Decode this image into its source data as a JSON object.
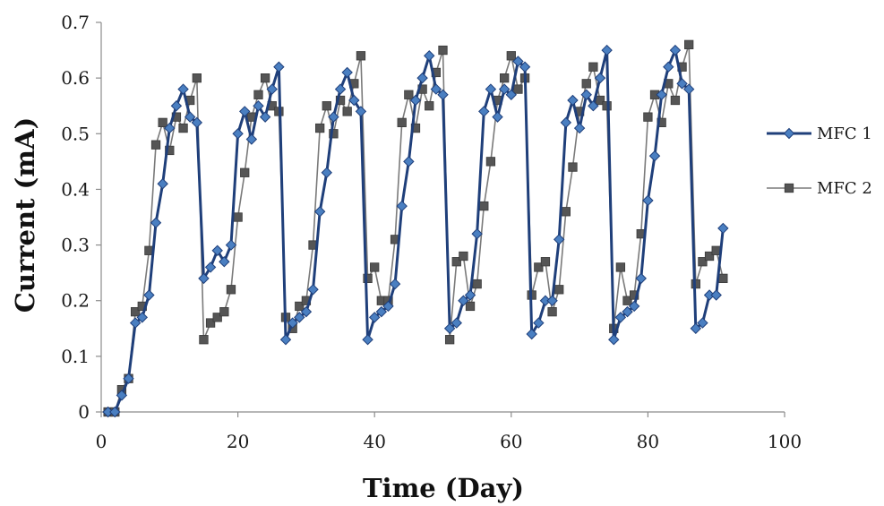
{
  "chart_data": {
    "type": "line",
    "title": "",
    "xlabel": "Time (Day)",
    "ylabel": "Current (mA)",
    "xlim": [
      0,
      100
    ],
    "ylim": [
      0,
      0.7
    ],
    "xticks": [
      0,
      20,
      40,
      60,
      80,
      100
    ],
    "xtick_labels": [
      "0",
      "20",
      "40",
      "60",
      "80",
      "100"
    ],
    "yticks": [
      0,
      0.1,
      0.2,
      0.3,
      0.4,
      0.5,
      0.6,
      0.7
    ],
    "ytick_labels": [
      "0",
      "0.1",
      "0.2",
      "0.3",
      "0.4",
      "0.5",
      "0.6",
      "0.7"
    ],
    "grid": false,
    "legend_position": "right",
    "series": [
      {
        "name": "MFC 1",
        "color": "#1f3f7a",
        "marker_color": "#4a7fc1",
        "marker": "diamond",
        "x": [
          1,
          2,
          3,
          4,
          5,
          6,
          7,
          8,
          9,
          10,
          11,
          12,
          13,
          14,
          15,
          16,
          17,
          18,
          19,
          20,
          21,
          22,
          23,
          24,
          25,
          26,
          27,
          28,
          29,
          30,
          31,
          32,
          33,
          34,
          35,
          36,
          37,
          38,
          39,
          40,
          41,
          42,
          43,
          44,
          45,
          46,
          47,
          48,
          49,
          50,
          51,
          52,
          53,
          54,
          55,
          56,
          57,
          58,
          59,
          60,
          61,
          62,
          63,
          64,
          65,
          66,
          67,
          68,
          69,
          70,
          71,
          72,
          73,
          74,
          75,
          76,
          77,
          78,
          79,
          80,
          81,
          82,
          83,
          84,
          85,
          86,
          87,
          88,
          89,
          90,
          91
        ],
        "y": [
          0,
          0,
          0.03,
          0.06,
          0.16,
          0.17,
          0.21,
          0.34,
          0.41,
          0.51,
          0.55,
          0.58,
          0.53,
          0.52,
          0.24,
          0.26,
          0.29,
          0.27,
          0.3,
          0.5,
          0.54,
          0.49,
          0.55,
          0.53,
          0.58,
          0.62,
          0.13,
          0.16,
          0.17,
          0.18,
          0.22,
          0.36,
          0.43,
          0.53,
          0.58,
          0.61,
          0.56,
          0.54,
          0.13,
          0.17,
          0.18,
          0.19,
          0.23,
          0.37,
          0.45,
          0.56,
          0.6,
          0.64,
          0.58,
          0.57,
          0.15,
          0.16,
          0.2,
          0.21,
          0.32,
          0.54,
          0.58,
          0.53,
          0.58,
          0.57,
          0.63,
          0.62,
          0.14,
          0.16,
          0.2,
          0.2,
          0.31,
          0.52,
          0.56,
          0.51,
          0.57,
          0.55,
          0.6,
          0.65,
          0.13,
          0.17,
          0.18,
          0.19,
          0.24,
          0.38,
          0.46,
          0.57,
          0.62,
          0.65,
          0.59,
          0.58,
          0.15,
          0.16,
          0.21,
          0.21,
          0.33
        ]
      },
      {
        "name": "MFC 2",
        "color": "#7a7a7a",
        "marker_color": "#555555",
        "marker": "square",
        "x": [
          1,
          2,
          3,
          4,
          5,
          6,
          7,
          8,
          9,
          10,
          11,
          12,
          13,
          14,
          15,
          16,
          17,
          18,
          19,
          20,
          21,
          22,
          23,
          24,
          25,
          26,
          27,
          28,
          29,
          30,
          31,
          32,
          33,
          34,
          35,
          36,
          37,
          38,
          39,
          40,
          41,
          42,
          43,
          44,
          45,
          46,
          47,
          48,
          49,
          50,
          51,
          52,
          53,
          54,
          55,
          56,
          57,
          58,
          59,
          60,
          61,
          62,
          63,
          64,
          65,
          66,
          67,
          68,
          69,
          70,
          71,
          72,
          73,
          74,
          75,
          76,
          77,
          78,
          79,
          80,
          81,
          82,
          83,
          84,
          85,
          86,
          87,
          88,
          89,
          90,
          91
        ],
        "y": [
          0,
          0,
          0.04,
          0.06,
          0.18,
          0.19,
          0.29,
          0.48,
          0.52,
          0.47,
          0.53,
          0.51,
          0.56,
          0.6,
          0.13,
          0.16,
          0.17,
          0.18,
          0.22,
          0.35,
          0.43,
          0.53,
          0.57,
          0.6,
          0.55,
          0.54,
          0.17,
          0.15,
          0.19,
          0.2,
          0.3,
          0.51,
          0.55,
          0.5,
          0.56,
          0.54,
          0.59,
          0.64,
          0.24,
          0.26,
          0.2,
          0.2,
          0.31,
          0.52,
          0.57,
          0.51,
          0.58,
          0.55,
          0.61,
          0.65,
          0.13,
          0.27,
          0.28,
          0.19,
          0.23,
          0.37,
          0.45,
          0.56,
          0.6,
          0.64,
          0.58,
          0.6,
          0.21,
          0.26,
          0.27,
          0.18,
          0.22,
          0.36,
          0.44,
          0.54,
          0.59,
          0.62,
          0.56,
          0.55,
          0.15,
          0.26,
          0.2,
          0.21,
          0.32,
          0.53,
          0.57,
          0.52,
          0.59,
          0.56,
          0.62,
          0.66,
          0.23,
          0.27,
          0.28,
          0.29,
          0.24
        ]
      }
    ]
  }
}
